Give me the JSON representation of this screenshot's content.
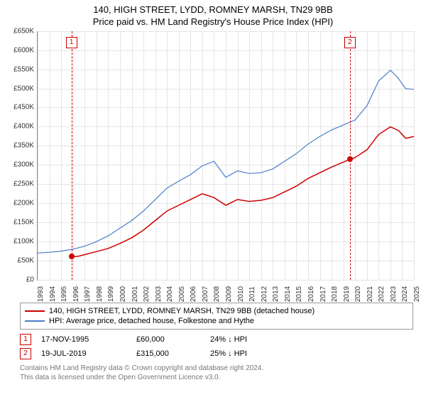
{
  "title": "140, HIGH STREET, LYDD, ROMNEY MARSH, TN29 9BB",
  "subtitle": "Price paid vs. HM Land Registry's House Price Index (HPI)",
  "chart": {
    "type": "line",
    "background_color": "#ffffff",
    "grid_color": "#e5e5e5",
    "axis_color": "#888888",
    "x": {
      "min": 1993,
      "max": 2025,
      "ticks": [
        1993,
        1994,
        1995,
        1996,
        1997,
        1998,
        1999,
        2000,
        2001,
        2002,
        2003,
        2004,
        2005,
        2006,
        2007,
        2008,
        2009,
        2010,
        2011,
        2012,
        2013,
        2014,
        2015,
        2016,
        2017,
        2018,
        2019,
        2020,
        2021,
        2022,
        2023,
        2024,
        2025
      ],
      "label_fontsize": 10
    },
    "y": {
      "min": 0,
      "max": 650000,
      "ticks": [
        0,
        50000,
        100000,
        150000,
        200000,
        250000,
        300000,
        350000,
        400000,
        450000,
        500000,
        550000,
        600000,
        650000
      ],
      "tick_labels": [
        "£0",
        "£50K",
        "£100K",
        "£150K",
        "£200K",
        "£250K",
        "£300K",
        "£350K",
        "£400K",
        "£450K",
        "£500K",
        "£550K",
        "£600K",
        "£650K"
      ],
      "label_fontsize": 10
    },
    "series": [
      {
        "name": "price_paid",
        "color": "#cc0000",
        "width": 1.5,
        "points": [
          [
            1995.88,
            60000
          ],
          [
            1996.5,
            62000
          ],
          [
            1997,
            66000
          ],
          [
            1998,
            74000
          ],
          [
            1999,
            82000
          ],
          [
            2000,
            95000
          ],
          [
            2001,
            110000
          ],
          [
            2002,
            130000
          ],
          [
            2003,
            155000
          ],
          [
            2004,
            180000
          ],
          [
            2005,
            195000
          ],
          [
            2006,
            210000
          ],
          [
            2007,
            225000
          ],
          [
            2008,
            215000
          ],
          [
            2009,
            195000
          ],
          [
            2010,
            210000
          ],
          [
            2011,
            205000
          ],
          [
            2012,
            208000
          ],
          [
            2013,
            215000
          ],
          [
            2014,
            230000
          ],
          [
            2015,
            245000
          ],
          [
            2016,
            265000
          ],
          [
            2017,
            280000
          ],
          [
            2018,
            295000
          ],
          [
            2019.55,
            315000
          ],
          [
            2020,
            320000
          ],
          [
            2021,
            340000
          ],
          [
            2022,
            380000
          ],
          [
            2023,
            400000
          ],
          [
            2023.7,
            390000
          ],
          [
            2024.3,
            370000
          ],
          [
            2025,
            375000
          ]
        ]
      },
      {
        "name": "hpi",
        "color": "#4a7dc9",
        "width": 1.2,
        "points": [
          [
            1993,
            70000
          ],
          [
            1994,
            72000
          ],
          [
            1995,
            75000
          ],
          [
            1996,
            80000
          ],
          [
            1997,
            88000
          ],
          [
            1998,
            100000
          ],
          [
            1999,
            115000
          ],
          [
            2000,
            135000
          ],
          [
            2001,
            155000
          ],
          [
            2002,
            180000
          ],
          [
            2003,
            210000
          ],
          [
            2004,
            240000
          ],
          [
            2005,
            258000
          ],
          [
            2006,
            275000
          ],
          [
            2007,
            298000
          ],
          [
            2008,
            310000
          ],
          [
            2009,
            268000
          ],
          [
            2010,
            285000
          ],
          [
            2011,
            278000
          ],
          [
            2012,
            280000
          ],
          [
            2013,
            290000
          ],
          [
            2014,
            310000
          ],
          [
            2015,
            330000
          ],
          [
            2016,
            355000
          ],
          [
            2017,
            375000
          ],
          [
            2018,
            392000
          ],
          [
            2019,
            405000
          ],
          [
            2020,
            418000
          ],
          [
            2021,
            455000
          ],
          [
            2022,
            520000
          ],
          [
            2023,
            548000
          ],
          [
            2023.6,
            530000
          ],
          [
            2024.3,
            500000
          ],
          [
            2025,
            498000
          ]
        ]
      }
    ],
    "markers": [
      {
        "id": "1",
        "x": 1995.88,
        "y": 60000
      },
      {
        "id": "2",
        "x": 2019.55,
        "y": 315000
      }
    ]
  },
  "legend": {
    "items": [
      {
        "color": "#cc0000",
        "label": "140, HIGH STREET, LYDD, ROMNEY MARSH, TN29 9BB (detached house)"
      },
      {
        "color": "#4a7dc9",
        "label": "HPI: Average price, detached house, Folkestone and Hythe"
      }
    ]
  },
  "sales": [
    {
      "badge": "1",
      "date": "17-NOV-1995",
      "price": "£60,000",
      "delta": "24% ↓ HPI"
    },
    {
      "badge": "2",
      "date": "19-JUL-2019",
      "price": "£315,000",
      "delta": "25% ↓ HPI"
    }
  ],
  "footer": {
    "line1": "Contains HM Land Registry data © Crown copyright and database right 2024.",
    "line2": "This data is licensed under the Open Government Licence v3.0."
  }
}
